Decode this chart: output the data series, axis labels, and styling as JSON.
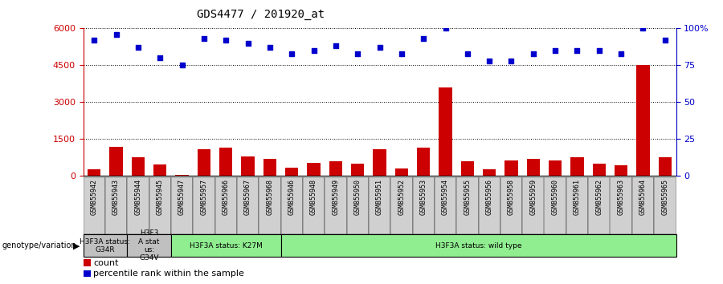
{
  "title": "GDS4477 / 201920_at",
  "samples": [
    "GSM855942",
    "GSM855943",
    "GSM855944",
    "GSM855945",
    "GSM855947",
    "GSM855957",
    "GSM855966",
    "GSM855967",
    "GSM855968",
    "GSM855946",
    "GSM855948",
    "GSM855949",
    "GSM855950",
    "GSM855951",
    "GSM855952",
    "GSM855953",
    "GSM855954",
    "GSM855955",
    "GSM855956",
    "GSM855958",
    "GSM855959",
    "GSM855960",
    "GSM855961",
    "GSM855962",
    "GSM855963",
    "GSM855964",
    "GSM855965"
  ],
  "counts": [
    280,
    1200,
    750,
    480,
    60,
    1100,
    1150,
    800,
    700,
    350,
    550,
    600,
    500,
    1100,
    300,
    1150,
    3600,
    600,
    280,
    650,
    700,
    650,
    750,
    500,
    450,
    4500,
    750
  ],
  "percentiles": [
    92,
    96,
    87,
    80,
    75,
    93,
    92,
    90,
    87,
    83,
    85,
    88,
    83,
    87,
    83,
    93,
    100,
    83,
    78,
    78,
    83,
    85,
    85,
    85,
    83,
    100,
    92
  ],
  "bar_color": "#cc0000",
  "dot_color": "#0000cc",
  "ylim_left": [
    0,
    6000
  ],
  "ylim_right": [
    0,
    100
  ],
  "yticks_left": [
    0,
    1500,
    3000,
    4500,
    6000
  ],
  "ytick_labels_left": [
    "0",
    "1500",
    "3000",
    "4500",
    "6000"
  ],
  "yticks_right": [
    0,
    25,
    50,
    75,
    100
  ],
  "ytick_labels_right": [
    "0",
    "25",
    "50",
    "75",
    "100%"
  ],
  "groups": [
    {
      "label": "H3F3A status:\nG34R",
      "start": 0,
      "end": 2,
      "color": "#c0c0c0"
    },
    {
      "label": "H3F3\nA stat\nus:\nG34V",
      "start": 2,
      "end": 4,
      "color": "#c0c0c0"
    },
    {
      "label": "H3F3A status: K27M",
      "start": 4,
      "end": 9,
      "color": "#90ee90"
    },
    {
      "label": "H3F3A status: wild type",
      "start": 9,
      "end": 27,
      "color": "#90ee90"
    }
  ],
  "legend_count_label": "count",
  "legend_pct_label": "percentile rank within the sample"
}
